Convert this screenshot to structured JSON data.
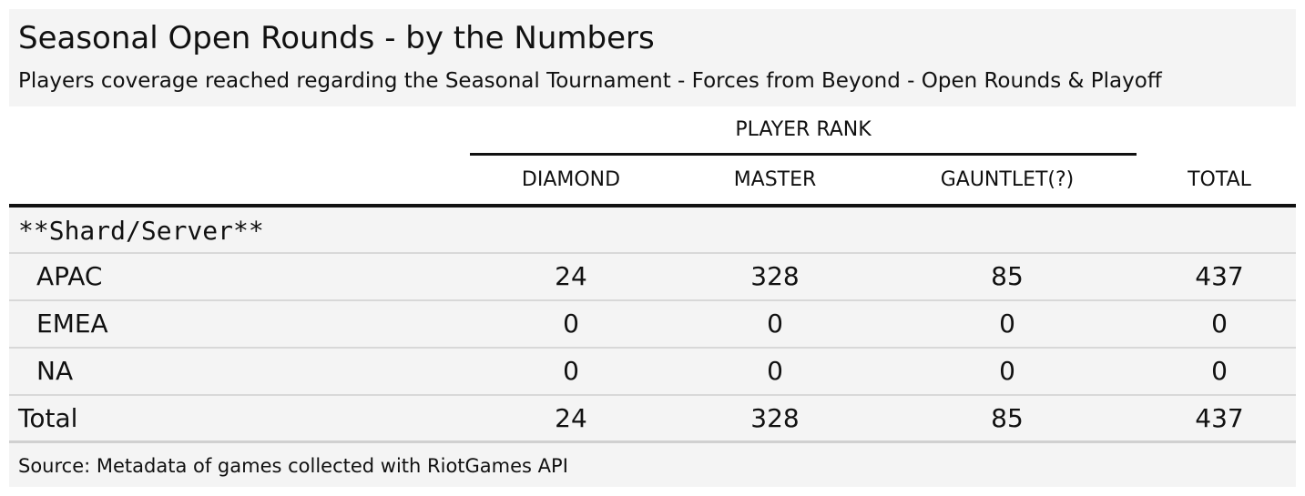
{
  "chart_data": {
    "type": "table",
    "title": "Seasonal Open Rounds - by the Numbers",
    "subtitle": "Players coverage reached regarding the Seasonal Tournament - Forces from Beyond - Open Rounds & Playoff",
    "spanner": "PLAYER RANK",
    "columns": [
      "DIAMOND",
      "MASTER",
      "GAUNTLET(?)",
      "TOTAL"
    ],
    "group_label": "**Shard/Server**",
    "rows": [
      {
        "label": "APAC",
        "values": [
          "24",
          "328",
          "85",
          "437"
        ]
      },
      {
        "label": "EMEA",
        "values": [
          "0",
          "0",
          "0",
          "0"
        ]
      },
      {
        "label": "NA",
        "values": [
          "0",
          "0",
          "0",
          "0"
        ]
      }
    ],
    "total_row": {
      "label": "Total",
      "values": [
        "24",
        "328",
        "85",
        "437"
      ]
    },
    "source": "Source: Metadata of games collected with RiotGames API"
  }
}
